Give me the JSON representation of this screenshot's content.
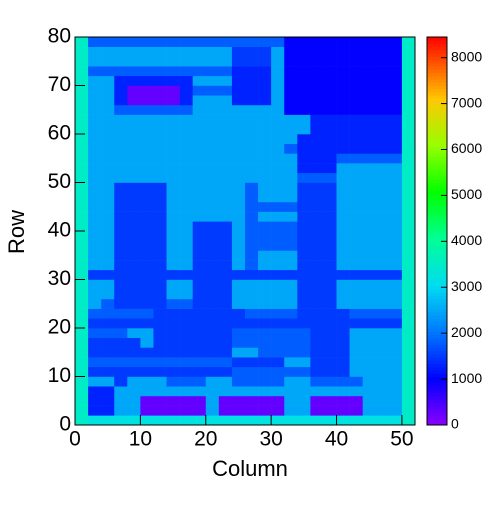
{
  "chart_data": {
    "type": "heatmap",
    "xlabel": "Column",
    "ylabel": "Row",
    "xlim": [
      0,
      52
    ],
    "ylim": [
      0,
      80
    ],
    "xticks": [
      0,
      10,
      20,
      30,
      40,
      50
    ],
    "yticks": [
      0,
      10,
      20,
      30,
      40,
      50,
      60,
      70,
      80
    ],
    "zlim": [
      0,
      8450
    ],
    "zticks": [
      0,
      1000,
      2000,
      3000,
      4000,
      5000,
      6000,
      7000,
      8000
    ],
    "z": [
      [
        3500,
        3200,
        3200,
        3200,
        3200,
        3200,
        3200,
        3200,
        3200,
        3200,
        3200,
        3200,
        3200,
        3200,
        3200,
        3200,
        3200,
        3200,
        3200,
        3200,
        3200,
        3200,
        3200,
        3200,
        3200,
        3500
      ],
      [
        3500,
        1300,
        1300,
        2500,
        2500,
        300,
        300,
        300,
        300,
        300,
        2500,
        300,
        300,
        300,
        300,
        300,
        2500,
        2500,
        300,
        300,
        300,
        300,
        2500,
        2500,
        2500,
        3500
      ],
      [
        3500,
        1300,
        1300,
        2500,
        2500,
        300,
        300,
        300,
        300,
        300,
        2500,
        300,
        300,
        300,
        300,
        300,
        2500,
        2500,
        300,
        300,
        300,
        300,
        2500,
        2500,
        2500,
        3500
      ],
      [
        3500,
        1300,
        1300,
        2500,
        2500,
        2500,
        2500,
        2500,
        2500,
        2500,
        2500,
        2500,
        2500,
        2500,
        2500,
        2500,
        2500,
        2500,
        2500,
        2500,
        2500,
        2500,
        2500,
        2500,
        2500,
        3500
      ],
      [
        3500,
        2500,
        2500,
        1500,
        2500,
        2500,
        2500,
        1800,
        1800,
        1800,
        2500,
        2500,
        1800,
        1800,
        1800,
        1800,
        2500,
        2500,
        1800,
        1800,
        1800,
        1800,
        2500,
        2500,
        2500,
        3500
      ],
      [
        3500,
        1500,
        1500,
        1500,
        1500,
        1500,
        1500,
        1500,
        1500,
        1500,
        1500,
        1500,
        1800,
        1800,
        1800,
        1800,
        1800,
        1800,
        1500,
        1500,
        1500,
        2500,
        2500,
        2500,
        2500,
        3500
      ],
      [
        3500,
        1800,
        1800,
        1800,
        1800,
        1800,
        1800,
        1800,
        1800,
        1800,
        1800,
        1800,
        1500,
        1500,
        1500,
        1500,
        2500,
        2500,
        1500,
        1500,
        1500,
        2500,
        2500,
        2500,
        2500,
        3500
      ],
      [
        3500,
        1500,
        1500,
        1500,
        1500,
        1500,
        1500,
        1500,
        1500,
        1500,
        1500,
        1500,
        2500,
        2500,
        1800,
        1800,
        1800,
        1800,
        1500,
        1500,
        1500,
        2500,
        2500,
        2500,
        2500,
        3500
      ],
      [
        3500,
        1500,
        1500,
        1500,
        1500,
        2500,
        1500,
        1500,
        1500,
        1500,
        1500,
        1500,
        1800,
        1800,
        1800,
        1800,
        1800,
        1800,
        1500,
        1500,
        1500,
        2500,
        2500,
        2500,
        2500,
        3500
      ],
      [
        3500,
        1800,
        1800,
        1800,
        2500,
        2500,
        1500,
        1500,
        1500,
        1500,
        1500,
        1500,
        1800,
        1800,
        1800,
        1800,
        1800,
        1800,
        1500,
        1500,
        1500,
        2500,
        2500,
        2500,
        2500,
        3500
      ],
      [
        3500,
        1500,
        1500,
        1500,
        1500,
        1500,
        1500,
        1500,
        1500,
        1500,
        1500,
        1500,
        1500,
        1500,
        1500,
        1500,
        1500,
        1500,
        1500,
        1500,
        1500,
        1500,
        1500,
        1500,
        1500,
        3500
      ],
      [
        3500,
        1800,
        1800,
        1800,
        1800,
        1800,
        1500,
        1500,
        1500,
        1500,
        1500,
        1500,
        1500,
        1800,
        1800,
        1800,
        1800,
        1500,
        1500,
        1500,
        1500,
        1800,
        1800,
        1800,
        1800,
        3500
      ],
      [
        3500,
        2500,
        1800,
        1500,
        1500,
        1500,
        1500,
        1800,
        1800,
        1500,
        1500,
        1500,
        2500,
        2500,
        2500,
        2500,
        2500,
        1500,
        1500,
        1500,
        2500,
        2500,
        2500,
        2500,
        2500,
        3500
      ],
      [
        3500,
        2500,
        2500,
        1500,
        1500,
        1500,
        1500,
        2500,
        2500,
        1500,
        1500,
        1500,
        2500,
        2500,
        2500,
        2500,
        2500,
        1500,
        1500,
        1500,
        2500,
        2500,
        2500,
        2500,
        2500,
        3500
      ],
      [
        3500,
        2500,
        2500,
        1500,
        1500,
        1500,
        1500,
        2500,
        2500,
        1500,
        1500,
        1500,
        2500,
        2500,
        2500,
        2500,
        2500,
        1500,
        1500,
        1500,
        2500,
        2500,
        2500,
        2500,
        2500,
        3500
      ],
      [
        3500,
        1500,
        1500,
        1500,
        1500,
        1500,
        1500,
        1500,
        1500,
        1500,
        1500,
        1500,
        1500,
        1500,
        1500,
        1500,
        1500,
        1500,
        1500,
        1500,
        1500,
        1500,
        1500,
        1500,
        1500,
        3500
      ],
      [
        3500,
        2500,
        2500,
        1500,
        1500,
        1500,
        1500,
        2500,
        2500,
        1500,
        1500,
        1500,
        2500,
        1800,
        2500,
        2500,
        2500,
        1500,
        1500,
        1500,
        2500,
        2500,
        2500,
        2500,
        2500,
        3500
      ],
      [
        3500,
        2500,
        2500,
        1500,
        1500,
        1500,
        1500,
        2500,
        2500,
        1500,
        1500,
        1500,
        2500,
        1800,
        2500,
        2500,
        2500,
        1500,
        1500,
        1500,
        2500,
        2500,
        2500,
        2500,
        2500,
        3500
      ],
      [
        3500,
        2500,
        2500,
        1500,
        1500,
        1500,
        1500,
        2500,
        2500,
        1500,
        1500,
        1500,
        2500,
        1800,
        1800,
        1800,
        1800,
        1500,
        1500,
        1500,
        2500,
        2500,
        2500,
        2500,
        2500,
        3500
      ],
      [
        3500,
        2500,
        2500,
        1500,
        1500,
        1500,
        1500,
        2500,
        2500,
        1500,
        1500,
        1500,
        2500,
        1800,
        1800,
        1800,
        1800,
        1500,
        1500,
        1500,
        2500,
        2500,
        2500,
        2500,
        2500,
        3500
      ],
      [
        3500,
        2500,
        2500,
        1500,
        1500,
        1500,
        1500,
        2500,
        2500,
        1500,
        1500,
        1500,
        2500,
        1800,
        1800,
        1800,
        1800,
        1500,
        1500,
        1500,
        2500,
        2500,
        2500,
        2500,
        2500,
        3500
      ],
      [
        3500,
        2500,
        2500,
        1500,
        1500,
        1500,
        1500,
        2500,
        2500,
        2500,
        2500,
        2500,
        2500,
        1800,
        2500,
        2500,
        2500,
        1500,
        1500,
        1500,
        2500,
        2500,
        2500,
        2500,
        2500,
        3500
      ],
      [
        3500,
        2500,
        2500,
        1500,
        1500,
        1500,
        1500,
        2500,
        2500,
        2500,
        2500,
        2500,
        2500,
        1800,
        1800,
        1800,
        1800,
        1500,
        1500,
        1500,
        2500,
        2500,
        2500,
        2500,
        2500,
        3500
      ],
      [
        3500,
        2500,
        2500,
        1500,
        1500,
        1500,
        1500,
        2500,
        2500,
        2500,
        2500,
        2500,
        2500,
        1800,
        2500,
        2500,
        2500,
        1500,
        1500,
        1500,
        2500,
        2500,
        2500,
        2500,
        2500,
        3500
      ],
      [
        3500,
        2500,
        2500,
        1500,
        1500,
        1500,
        1500,
        2500,
        2500,
        2500,
        2500,
        2500,
        2500,
        1800,
        2500,
        2500,
        2500,
        1500,
        1500,
        1500,
        2500,
        2500,
        2500,
        2500,
        2500,
        3500
      ],
      [
        3500,
        2500,
        2500,
        2500,
        2500,
        2500,
        2500,
        2500,
        2500,
        2500,
        2500,
        2500,
        2500,
        2500,
        2500,
        2500,
        2500,
        1800,
        1800,
        1800,
        2500,
        2500,
        2500,
        2500,
        2500,
        3500
      ],
      [
        3500,
        2500,
        2500,
        2500,
        2500,
        2500,
        2500,
        2500,
        2500,
        2500,
        2500,
        2500,
        2500,
        2500,
        2500,
        2500,
        2500,
        1300,
        1300,
        1300,
        2500,
        2500,
        2500,
        2500,
        2500,
        3500
      ],
      [
        3500,
        2500,
        2500,
        2500,
        2500,
        2500,
        2500,
        2500,
        2500,
        2500,
        2500,
        2500,
        2500,
        2500,
        2500,
        2500,
        2500,
        1300,
        1300,
        1300,
        1800,
        1800,
        1800,
        1800,
        1800,
        3500
      ],
      [
        3500,
        2500,
        2500,
        2500,
        2500,
        2500,
        2500,
        2500,
        2500,
        2500,
        2500,
        2500,
        2500,
        2500,
        2500,
        2500,
        1800,
        1300,
        1300,
        1300,
        1300,
        1300,
        1300,
        1300,
        1300,
        3500
      ],
      [
        3500,
        2500,
        2500,
        2500,
        2500,
        2500,
        2500,
        2500,
        2500,
        2500,
        2500,
        2500,
        2500,
        2500,
        2500,
        2500,
        2500,
        1300,
        1300,
        1300,
        1300,
        1300,
        1300,
        1300,
        1300,
        3500
      ],
      [
        3500,
        2500,
        2500,
        2500,
        2500,
        2500,
        2500,
        2500,
        2500,
        2500,
        2500,
        2500,
        2500,
        2500,
        2500,
        2500,
        2500,
        2500,
        1300,
        1300,
        1300,
        1300,
        1300,
        1300,
        1300,
        3500
      ],
      [
        3500,
        2500,
        2500,
        2500,
        2500,
        2500,
        2500,
        2500,
        2500,
        2500,
        2500,
        2500,
        2500,
        2500,
        2500,
        2500,
        2500,
        2500,
        1300,
        1300,
        1300,
        1300,
        1300,
        1300,
        1300,
        3500
      ],
      [
        3500,
        2500,
        2500,
        1800,
        1800,
        1800,
        1800,
        1800,
        1800,
        2500,
        2500,
        2500,
        2500,
        2500,
        2500,
        2500,
        1000,
        1000,
        1000,
        1000,
        1000,
        1000,
        1000,
        1000,
        1000,
        3500
      ],
      [
        3500,
        2500,
        2500,
        1300,
        300,
        300,
        300,
        300,
        1300,
        2500,
        2500,
        2500,
        1300,
        1300,
        1300,
        2500,
        1000,
        1000,
        1000,
        1000,
        1000,
        1000,
        1000,
        1000,
        1000,
        3500
      ],
      [
        3500,
        2500,
        2500,
        1300,
        300,
        300,
        300,
        300,
        1300,
        1800,
        1800,
        1800,
        1300,
        1300,
        1300,
        2500,
        1000,
        1000,
        1000,
        1000,
        1000,
        1000,
        1000,
        1000,
        1000,
        3500
      ],
      [
        3500,
        2500,
        2500,
        1300,
        1300,
        1300,
        1300,
        1300,
        1300,
        2500,
        2500,
        2500,
        1300,
        1300,
        1300,
        2500,
        1000,
        1000,
        1000,
        1000,
        1000,
        1000,
        1000,
        1000,
        1000,
        3500
      ],
      [
        3500,
        1800,
        1800,
        1800,
        1800,
        1800,
        1800,
        1800,
        1800,
        1800,
        1800,
        1800,
        1300,
        1300,
        1300,
        2500,
        1000,
        1000,
        1000,
        1000,
        1000,
        1000,
        1000,
        1000,
        1000,
        3500
      ],
      [
        3500,
        2500,
        2500,
        2500,
        2500,
        2500,
        2500,
        2500,
        2500,
        2500,
        2500,
        2500,
        1500,
        1500,
        1500,
        2500,
        1000,
        1000,
        1000,
        1000,
        1000,
        1000,
        1000,
        1000,
        1000,
        3500
      ],
      [
        3500,
        2500,
        2500,
        2500,
        2500,
        2500,
        2500,
        2500,
        2500,
        2500,
        2500,
        2500,
        1500,
        1500,
        1500,
        2500,
        1000,
        1000,
        1000,
        1000,
        1000,
        1000,
        1000,
        1000,
        1000,
        3500
      ],
      [
        3500,
        1800,
        1800,
        1800,
        1800,
        1800,
        1800,
        1800,
        1800,
        1800,
        1800,
        1800,
        1800,
        1800,
        1800,
        1800,
        1000,
        1000,
        1000,
        1000,
        1000,
        1000,
        1000,
        1000,
        1000,
        3500
      ]
    ]
  }
}
